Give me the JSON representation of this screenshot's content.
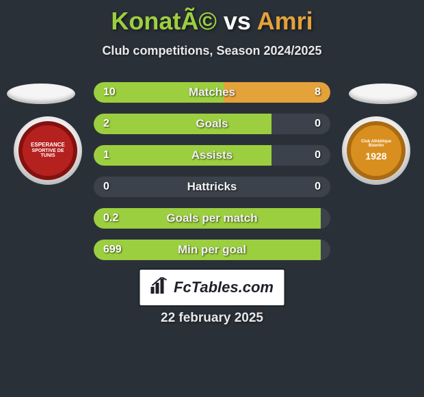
{
  "header": {
    "title_player1": "KonatÃ©",
    "title_vs": " vs ",
    "title_player2": "Amri",
    "subtitle": "Club competitions, Season 2024/2025"
  },
  "colors": {
    "player1": "#9ccf3f",
    "player2": "#e4a23a",
    "title_player1": "#9ccf3f",
    "title_vs": "#ffffff",
    "title_player2": "#e4a23a",
    "row_bg": "#3b424c",
    "page_bg": "#2a3038",
    "logo_bg": "#ffffff",
    "logo_text": "#1e2228"
  },
  "club_badges": {
    "left": {
      "bg": "#b5211f",
      "ring": "#84110f",
      "label_top": "ESPERANCE",
      "label_bottom": "SPORTIVE DE TUNIS"
    },
    "right": {
      "bg": "#d98f1f",
      "ring": "#a86a12",
      "label_top": "Club Athlétique Bizertin",
      "year": "1928"
    }
  },
  "stats": {
    "bar_max_pct": 100,
    "rows": [
      {
        "label": "Matches",
        "left_val": "10",
        "right_val": "8",
        "left_pct": 55,
        "right_pct": 45
      },
      {
        "label": "Goals",
        "left_val": "2",
        "right_val": "0",
        "left_pct": 75,
        "right_pct": 0
      },
      {
        "label": "Assists",
        "left_val": "1",
        "right_val": "0",
        "left_pct": 75,
        "right_pct": 0
      },
      {
        "label": "Hattricks",
        "left_val": "0",
        "right_val": "0",
        "left_pct": 0,
        "right_pct": 0
      },
      {
        "label": "Goals per match",
        "left_val": "0.2",
        "right_val": "",
        "left_pct": 96,
        "right_pct": 0
      },
      {
        "label": "Min per goal",
        "left_val": "699",
        "right_val": "",
        "left_pct": 96,
        "right_pct": 0
      }
    ]
  },
  "footer": {
    "logo_text": "FcTables.com",
    "date": "22 february 2025"
  }
}
